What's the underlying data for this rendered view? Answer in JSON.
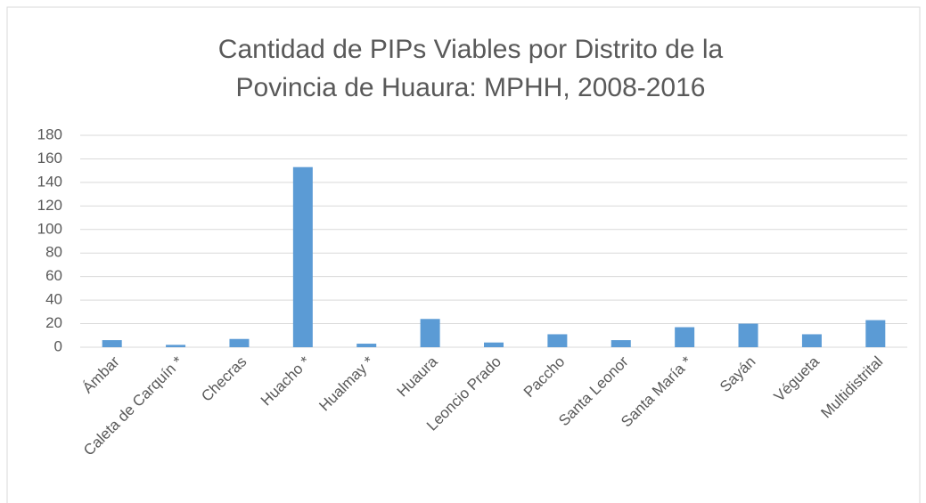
{
  "chart_data": {
    "type": "bar",
    "title": [
      "Cantidad de PIPs Viables por Distrito de la",
      "Povincia de Huaura: MPHH, 2008-2016"
    ],
    "categories": [
      "Ámbar",
      "Caleta de Carquín *",
      "Checras",
      "Huacho *",
      "Hualmay *",
      "Huaura",
      "Leoncio Prado",
      "Paccho",
      "Santa Leonor",
      "Santa María *",
      "Sayán",
      "Végueta",
      "Multidistrital"
    ],
    "values": [
      6,
      2,
      7,
      153,
      3,
      24,
      4,
      11,
      6,
      17,
      20,
      11,
      23
    ],
    "color": "#5b9bd5",
    "ylim": [
      0,
      180
    ],
    "yticks": [
      0,
      20,
      40,
      60,
      80,
      100,
      120,
      140,
      160,
      180
    ],
    "grid": true
  }
}
